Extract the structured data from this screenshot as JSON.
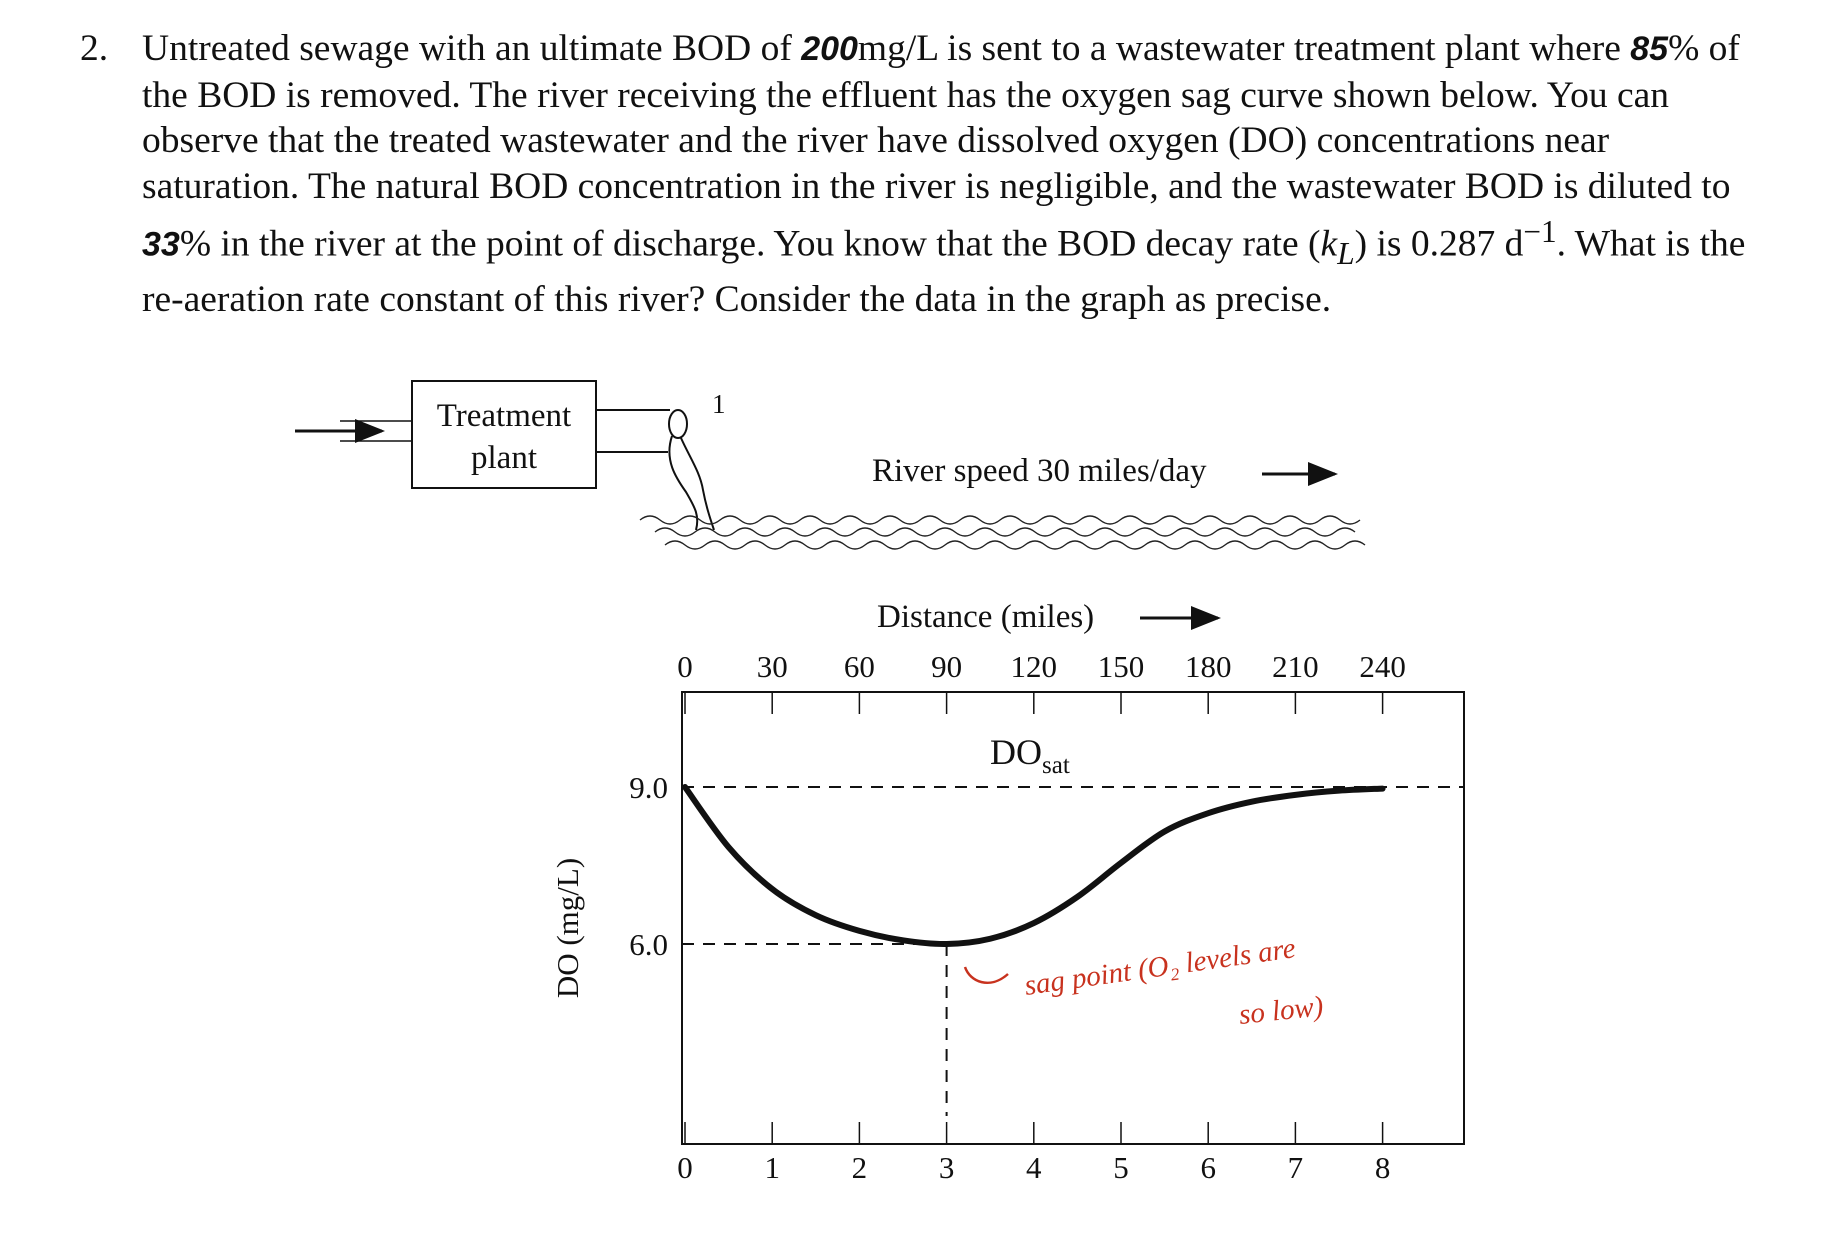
{
  "problem": {
    "number": "2.",
    "t1": "Untreated sewage with an ultimate BOD of ",
    "v_bod": "200",
    "t2": "mg/L is sent to a wastewater treatment plant where ",
    "v_removed": "85",
    "t3": "% of the BOD is removed. The river receiving the effluent has the oxygen sag curve shown below. You can observe that the treated wastewater and the river have dissolved oxygen (DO) concentrations near saturation. The natural BOD concentration in the river is negligible, and the wastewater BOD is diluted to ",
    "v_dilution": "33",
    "t4": "% in the river at the point of discharge. You know that the BOD decay rate (",
    "k_symbol": "k",
    "k_sub": "L",
    "t5": ") is 0.287 d",
    "t5_sup": "−1",
    "t6": ". What is the re-aeration rate constant of this river? Consider the data in the graph as precise."
  },
  "diagram": {
    "plant_label_line1": "Treatment",
    "plant_label_line2": "plant",
    "discharge_point_label": "1",
    "river_speed_label": "River speed 30 miles/day",
    "distance_label": "Distance (miles)",
    "y_axis_label": "DO (mg/L)",
    "dosat_label": "DO",
    "dosat_sub": "sat",
    "annotation_line1": "sag point (O₂ levels are",
    "annotation_line2": "so low)",
    "annotation_color": "#c8321e"
  },
  "chart_data": {
    "type": "line",
    "x_top_ticks": [
      "0",
      "30",
      "60",
      "90",
      "120",
      "150",
      "180",
      "210",
      "240"
    ],
    "x_bottom_ticks": [
      "0",
      "1",
      "2",
      "3",
      "4",
      "5",
      "6",
      "7",
      "8"
    ],
    "y_ticks": [
      "9.0",
      "6.0"
    ],
    "ylim": [
      3.5,
      11.6
    ],
    "xlim": [
      0,
      8.9
    ],
    "do_sat": 9.0,
    "critical_point": {
      "t_days": 3,
      "distance_miles": 90,
      "do_mg_l": 6.0
    },
    "series": [
      {
        "values": [
          {
            "x": 0,
            "y": 9.0
          },
          {
            "x": 0.5,
            "y": 7.85
          },
          {
            "x": 1,
            "y": 7.05
          },
          {
            "x": 1.5,
            "y": 6.55
          },
          {
            "x": 2,
            "y": 6.25
          },
          {
            "x": 2.5,
            "y": 6.07
          },
          {
            "x": 3,
            "y": 6.0
          },
          {
            "x": 3.5,
            "y": 6.1
          },
          {
            "x": 4,
            "y": 6.4
          },
          {
            "x": 4.5,
            "y": 6.9
          },
          {
            "x": 5,
            "y": 7.55
          },
          {
            "x": 5.5,
            "y": 8.15
          },
          {
            "x": 6,
            "y": 8.5
          },
          {
            "x": 6.5,
            "y": 8.72
          },
          {
            "x": 7,
            "y": 8.85
          },
          {
            "x": 7.5,
            "y": 8.93
          },
          {
            "x": 8,
            "y": 8.97
          }
        ]
      }
    ]
  }
}
